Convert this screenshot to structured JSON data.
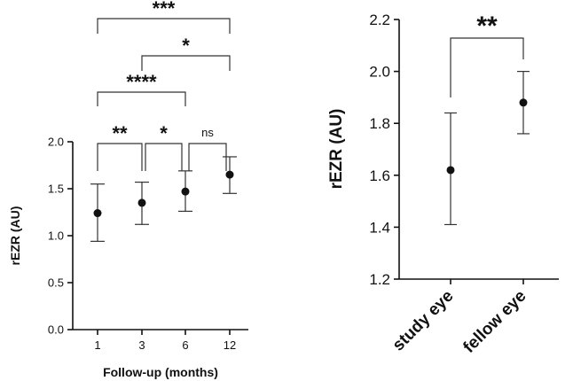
{
  "chart_data": [
    {
      "type": "scatter",
      "subtype": "point-with-error-bars",
      "title": "",
      "xlabel": "Follow-up (months)",
      "ylabel": "rEZR (AU)",
      "ylim": [
        0.0,
        2.0
      ],
      "yticks": [
        "0.0",
        "0.5",
        "1.0",
        "1.5",
        "2.0"
      ],
      "categories": [
        "1",
        "3",
        "6",
        "12"
      ],
      "series": [
        {
          "name": "rEZR",
          "values": [
            1.24,
            1.35,
            1.47,
            1.65
          ],
          "lower": [
            0.94,
            1.12,
            1.26,
            1.45
          ],
          "upper": [
            1.55,
            1.57,
            1.69,
            1.84
          ]
        }
      ],
      "comparisons": [
        {
          "from": 0,
          "to": 1,
          "label": "**"
        },
        {
          "from": 1,
          "to": 2,
          "label": "*"
        },
        {
          "from": 2,
          "to": 3,
          "label": "ns"
        },
        {
          "from": 0,
          "to": 2,
          "label": "****"
        },
        {
          "from": 1,
          "to": 3,
          "label": "*"
        },
        {
          "from": 0,
          "to": 3,
          "label": "***"
        }
      ]
    },
    {
      "type": "scatter",
      "subtype": "point-with-error-bars",
      "title": "",
      "xlabel": "",
      "ylabel": "rEZR (AU)",
      "ylim": [
        1.2,
        2.2
      ],
      "yticks": [
        "1.2",
        "1.4",
        "1.6",
        "1.8",
        "2.0",
        "2.2"
      ],
      "categories": [
        "study eye",
        "fellow eye"
      ],
      "series": [
        {
          "name": "rEZR",
          "values": [
            1.62,
            1.88
          ],
          "lower": [
            1.41,
            1.76
          ],
          "upper": [
            1.84,
            2.0
          ]
        }
      ],
      "comparisons": [
        {
          "from": 0,
          "to": 1,
          "label": "**"
        }
      ]
    }
  ]
}
